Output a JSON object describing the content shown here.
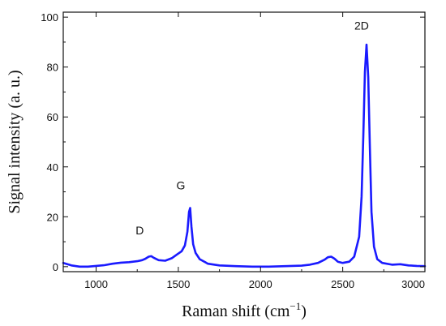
{
  "chart_data": {
    "type": "line",
    "title": "",
    "xlabel": "Raman shift (cm",
    "xlabel_sup": "−1",
    "xlabel_close": ")",
    "ylabel": "Signal intensity (a. u.)",
    "xlim": [
      800,
      3000
    ],
    "ylim": [
      -2,
      102
    ],
    "xticks": [
      1000,
      1500,
      2000,
      2500,
      3000
    ],
    "yticks": [
      0,
      20,
      40,
      60,
      80,
      100
    ],
    "grid": false,
    "series_color": "#1a1aff",
    "annotations": [
      {
        "text": "D",
        "x": 1265,
        "y": 13
      },
      {
        "text": "G",
        "x": 1515,
        "y": 31
      },
      {
        "text": "2D",
        "x": 2615,
        "y": 95
      }
    ],
    "series": [
      {
        "x": [
          800,
          850,
          900,
          950,
          1000,
          1050,
          1100,
          1150,
          1200,
          1250,
          1280,
          1300,
          1320,
          1335,
          1350,
          1380,
          1420,
          1460,
          1490,
          1520,
          1540,
          1555,
          1565,
          1572,
          1580,
          1590,
          1605,
          1630,
          1680,
          1750,
          1850,
          1950,
          2050,
          2150,
          2250,
          2300,
          2350,
          2390,
          2410,
          2430,
          2450,
          2470,
          2500,
          2540,
          2570,
          2600,
          2615,
          2625,
          2635,
          2645,
          2655,
          2665,
          2675,
          2690,
          2710,
          2740,
          2800,
          2850,
          2900,
          2950,
          3000
        ],
        "y": [
          1.5,
          0.5,
          0,
          0,
          0.3,
          0.6,
          1.2,
          1.6,
          1.8,
          2.2,
          2.6,
          3.2,
          4,
          4.2,
          3.6,
          2.6,
          2.4,
          3.4,
          4.8,
          6.2,
          8.5,
          14,
          22,
          23.5,
          16,
          9,
          5.5,
          3,
          1.2,
          0.5,
          0.2,
          0,
          0,
          0.2,
          0.4,
          0.8,
          1.5,
          2.8,
          3.8,
          4,
          3.2,
          2,
          1.5,
          2,
          4,
          12,
          28,
          52,
          78,
          89,
          76,
          48,
          22,
          8,
          3,
          1.5,
          0.8,
          1,
          0.5,
          0.3,
          0.2
        ]
      }
    ]
  }
}
